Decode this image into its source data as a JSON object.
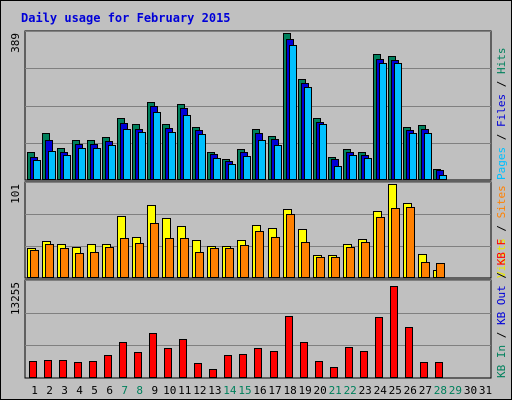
{
  "chart_data": {
    "type": "bar",
    "title": "Daily usage for February 2015",
    "categories": [
      "1",
      "2",
      "3",
      "4",
      "5",
      "6",
      "7",
      "8",
      "9",
      "10",
      "11",
      "12",
      "13",
      "14",
      "15",
      "16",
      "17",
      "18",
      "19",
      "20",
      "21",
      "22",
      "23",
      "24",
      "25",
      "26",
      "27",
      "28",
      "29",
      "30",
      "31"
    ],
    "weekend_days": [
      "7",
      "8",
      "14",
      "15",
      "21",
      "22",
      "28",
      "29"
    ],
    "panels": [
      {
        "id": "top",
        "max_label": "389",
        "ylim": [
          0,
          389
        ],
        "legend": [
          {
            "text": "Pages",
            "color": "#00c0ff"
          },
          {
            "text": " / ",
            "color": "#000000"
          },
          {
            "text": "Files",
            "color": "#0000d8"
          },
          {
            "text": " / ",
            "color": "#000000"
          },
          {
            "text": "Hits",
            "color": "#00805c"
          }
        ],
        "series": [
          {
            "name": "Hits",
            "color": "#00805c",
            "values": [
              74,
              124,
              85,
              105,
              105,
              114,
              164,
              148,
              207,
              148,
              201,
              141,
              74,
              55,
              81,
              134,
              117,
              389,
              266,
              164,
              62,
              81,
              74,
              334,
              329,
              141,
              146,
              28,
              0,
              0,
              0
            ]
          },
          {
            "name": "Files",
            "color": "#0000d8",
            "values": [
              62,
              106,
              74,
              95,
              95,
              104,
              150,
              136,
              195,
              138,
              191,
              131,
              68,
              49,
              74,
              124,
              108,
              374,
              256,
              154,
              55,
              74,
              67,
              319,
              318,
              132,
              134,
              27,
              0,
              0,
              0
            ]
          },
          {
            "name": "Pages",
            "color": "#00c0ff",
            "values": [
              52,
              78,
              67,
              85,
              85,
              93,
              134,
              128,
              180,
              127,
              172,
              122,
              58,
              43,
              63,
              107,
              92,
              357,
              245,
              147,
              37,
              66,
              59,
              310,
              309,
              124,
              124,
              13,
              0,
              0,
              0
            ]
          }
        ]
      },
      {
        "id": "middle",
        "max_label": "101",
        "ylim": [
          0,
          101
        ],
        "legend": [
          {
            "text": "Visits",
            "color": "#e8e800"
          },
          {
            "text": " / ",
            "color": "#000000"
          },
          {
            "text": "Sites",
            "color": "#ff8000"
          }
        ],
        "series": [
          {
            "name": "Visits",
            "color": "#ffff00",
            "values": [
              32,
              40,
              37,
              33,
              36,
              37,
              67,
              44,
              78,
              65,
              56,
              41,
              34,
              34,
              41,
              57,
              54,
              74,
              53,
              25,
              25,
              37,
              42,
              72,
              101,
              81,
              26,
              9,
              0,
              0,
              0
            ]
          },
          {
            "name": "Sites",
            "color": "#ff8000",
            "values": [
              30,
              37,
              32,
              27,
              28,
              33,
              43,
              38,
              59,
              43,
              43,
              28,
              32,
              32,
              35,
              51,
              44,
              69,
              39,
              23,
              23,
              33,
              39,
              66,
              75,
              76,
              17,
              16,
              0,
              0,
              0
            ]
          }
        ]
      },
      {
        "id": "bottom",
        "max_label": "13255",
        "ylim": [
          0,
          13255
        ],
        "legend": [
          {
            "text": "KB In",
            "color": "#00805c"
          },
          {
            "text": " / ",
            "color": "#000000"
          },
          {
            "text": "KB Out",
            "color": "#0000d8"
          },
          {
            "text": " / ",
            "color": "#000000"
          },
          {
            "text": "KB F",
            "color": "#ff0000"
          }
        ],
        "series": [
          {
            "name": "KB F",
            "color": "#ff0000",
            "values": [
              2300,
              2510,
              2510,
              2200,
              2300,
              3140,
              5020,
              3560,
              6280,
              4180,
              5440,
              2110,
              1300,
              3140,
              3350,
              4100,
              3770,
              8580,
              5020,
              2400,
              1500,
              4340,
              3770,
              8380,
              12770,
              7110,
              2200,
              2200,
              0,
              0,
              0
            ]
          }
        ]
      }
    ]
  }
}
